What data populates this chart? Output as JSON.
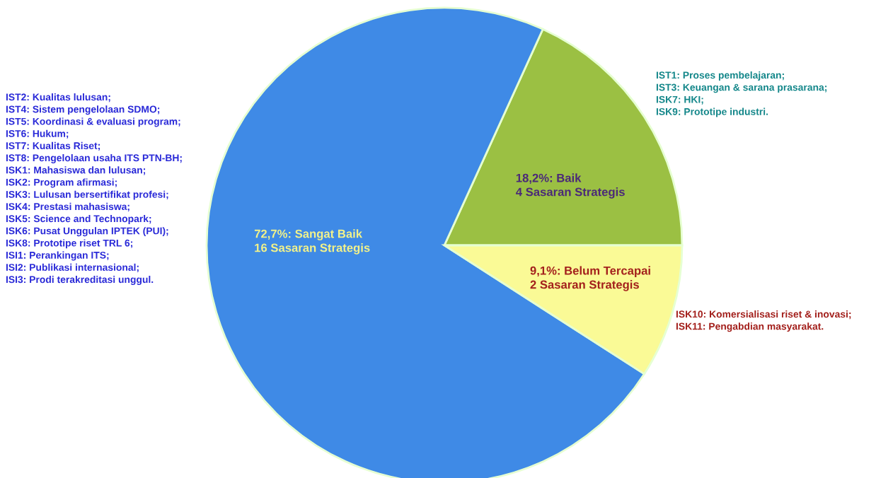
{
  "chart_data": {
    "type": "pie",
    "categories": [
      "Baik",
      "Sangat Baik",
      "Belum Tercapai"
    ],
    "values": [
      18.2,
      72.7,
      9.1
    ],
    "value_labels": [
      "18,2%",
      "72,7%",
      "9,1%"
    ],
    "colors": [
      "#9bc043",
      "#3f8ae6",
      "#fafa96"
    ],
    "annotations": [
      "4 Sasaran Strategis",
      "16 Sasaran Strategis",
      "2 Sasaran Strategis",
      "IST1: Proses pembelajaran;\nIST3: Keuangan & sarana prasarana;\nISK7: HKI;\nISK9: Prototipe industri.",
      "IST2: Kualitas lulusan;\nIST4: Sistem pengelolaan SDMO;\nIST5: Koordinasi & evaluasi program;\nIST6: Hukum;\nIST7: Kualitas Riset;\nIST8: Pengelolaan usaha ITS PTN-BH;\nISK1: Mahasiswa dan lulusan;\nISK2: Program afirmasi;\nISK3: Lulusan bersertifikat profesi;\nISK4: Prestasi mahasiswa;\nISK5: Science and Technopark;\nISK6: Pusat Unggulan IPTEK (PUI);\nISK8: Prototipe riset TRL 6;\nISI1: Perankingan ITS;\nISI2: Publikasi internasional;\nISI3: Prodi terakreditasi unggul.",
      "ISK10: Komersialisasi riset & inovasi;\nISK11: Pengabdian masyarakat."
    ]
  }
}
